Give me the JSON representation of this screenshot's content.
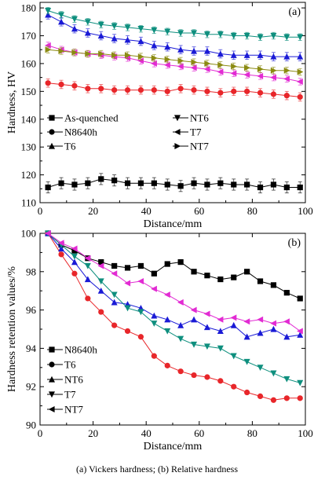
{
  "caption": "(a) Vickers hardness; (b) Relative hardness",
  "chart_data": [
    {
      "type": "line",
      "panel_label": "(a)",
      "xlabel": "Distance/mm",
      "ylabel": "Hardness, HV",
      "xlim": [
        0,
        100
      ],
      "ylim": [
        110,
        182
      ],
      "xticks": [
        0,
        20,
        40,
        60,
        80,
        100
      ],
      "yticks": [
        110,
        120,
        130,
        140,
        150,
        160,
        170,
        180
      ],
      "x": [
        3,
        8,
        13,
        18,
        23,
        28,
        33,
        38,
        43,
        48,
        53,
        58,
        63,
        68,
        73,
        78,
        83,
        88,
        93,
        98
      ],
      "series": [
        {
          "name": "As-quenched",
          "marker": "square",
          "color": "#000000",
          "error": 2,
          "values": [
            115.5,
            117,
            116.5,
            117,
            118.5,
            118,
            117,
            117,
            117,
            116.5,
            116,
            117,
            116.5,
            117,
            116.5,
            116.5,
            115.5,
            116.5,
            115.5,
            115.5
          ]
        },
        {
          "name": "N8640h",
          "marker": "circle",
          "color": "#e8262a",
          "error": 1.5,
          "values": [
            153,
            152.5,
            152,
            151,
            151,
            150.5,
            150.5,
            150.5,
            150.5,
            150,
            151,
            150.5,
            150,
            149.5,
            150,
            150,
            149.5,
            149,
            148.5,
            148
          ]
        },
        {
          "name": "T6",
          "marker": "triangle-up",
          "color": "#1a1ad6",
          "error": 1.5,
          "values": [
            177.5,
            175,
            172.5,
            171,
            170,
            169,
            168.5,
            168,
            166.5,
            166,
            165,
            164.5,
            164.5,
            163.5,
            163,
            163,
            163,
            162.5,
            162.5,
            162.5
          ]
        },
        {
          "name": "NT6",
          "marker": "triangle-down",
          "color": "#0e8f7e",
          "error": 1.2,
          "values": [
            179,
            177.5,
            176,
            175,
            174,
            173.5,
            173,
            172.5,
            172,
            171.5,
            171,
            171,
            170.5,
            170.5,
            170,
            170,
            169.5,
            170,
            169.5,
            169.5
          ]
        },
        {
          "name": "T7",
          "marker": "triangle-left",
          "color": "#e22bd3",
          "error": 1.2,
          "values": [
            166.5,
            165,
            164,
            163.5,
            163,
            162.5,
            162,
            161,
            160,
            159.5,
            159,
            158.5,
            158,
            157,
            156.5,
            156,
            155.5,
            155,
            154.5,
            153.5
          ]
        },
        {
          "name": "NT7",
          "marker": "triangle-right",
          "color": "#8b8b12",
          "error": 1.2,
          "values": [
            165,
            164.5,
            164,
            163.5,
            163.5,
            163,
            163,
            162.5,
            162,
            161.5,
            161,
            160.5,
            160,
            159.5,
            159,
            158.5,
            158,
            157.5,
            157.5,
            157
          ]
        }
      ]
    },
    {
      "type": "line",
      "panel_label": "(b)",
      "xlabel": "Distance/mm",
      "ylabel": "Hardness retention values/%",
      "xlim": [
        0,
        100
      ],
      "ylim": [
        90,
        100
      ],
      "xticks": [
        0,
        20,
        40,
        60,
        80,
        100
      ],
      "yticks": [
        90,
        92,
        94,
        96,
        98,
        100
      ],
      "x": [
        3,
        8,
        13,
        18,
        23,
        28,
        33,
        38,
        43,
        48,
        53,
        58,
        63,
        68,
        73,
        78,
        83,
        88,
        93,
        98
      ],
      "series": [
        {
          "name": "N8640h",
          "marker": "square",
          "color": "#000000",
          "values": [
            100,
            99.4,
            99.1,
            98.7,
            98.5,
            98.3,
            98.2,
            98.3,
            97.9,
            98.4,
            98.5,
            98.0,
            97.8,
            97.6,
            97.7,
            98.0,
            97.5,
            97.3,
            96.9,
            96.6
          ]
        },
        {
          "name": "T6",
          "marker": "circle",
          "color": "#e8262a",
          "values": [
            100,
            98.9,
            97.9,
            96.6,
            95.9,
            95.2,
            94.9,
            94.6,
            93.6,
            93.1,
            92.8,
            92.6,
            92.5,
            92.3,
            92.0,
            91.7,
            91.5,
            91.3,
            91.4,
            91.4
          ]
        },
        {
          "name": "NT6",
          "marker": "triangle-up",
          "color": "#1a1ad6",
          "values": [
            100,
            99.2,
            98.5,
            97.6,
            97.0,
            96.4,
            96.3,
            96.1,
            95.7,
            95.5,
            95.2,
            95.5,
            95.1,
            94.9,
            95.2,
            94.6,
            94.8,
            95.0,
            94.6,
            94.7
          ]
        },
        {
          "name": "T7",
          "marker": "triangle-down",
          "color": "#0e8f7e",
          "values": [
            100,
            99.4,
            98.8,
            98.3,
            97.5,
            96.8,
            96.1,
            95.9,
            95.3,
            94.9,
            94.5,
            94.2,
            94.1,
            94.0,
            93.6,
            93.3,
            93.0,
            92.7,
            92.4,
            92.2
          ]
        },
        {
          "name": "NT7",
          "marker": "triangle-left",
          "color": "#e22bd3",
          "values": [
            100,
            99.5,
            99.2,
            98.7,
            98.3,
            97.9,
            97.4,
            97.5,
            97.1,
            96.8,
            96.4,
            96.0,
            95.8,
            95.5,
            95.6,
            95.4,
            95.5,
            95.3,
            95.4,
            94.9
          ]
        }
      ]
    }
  ]
}
